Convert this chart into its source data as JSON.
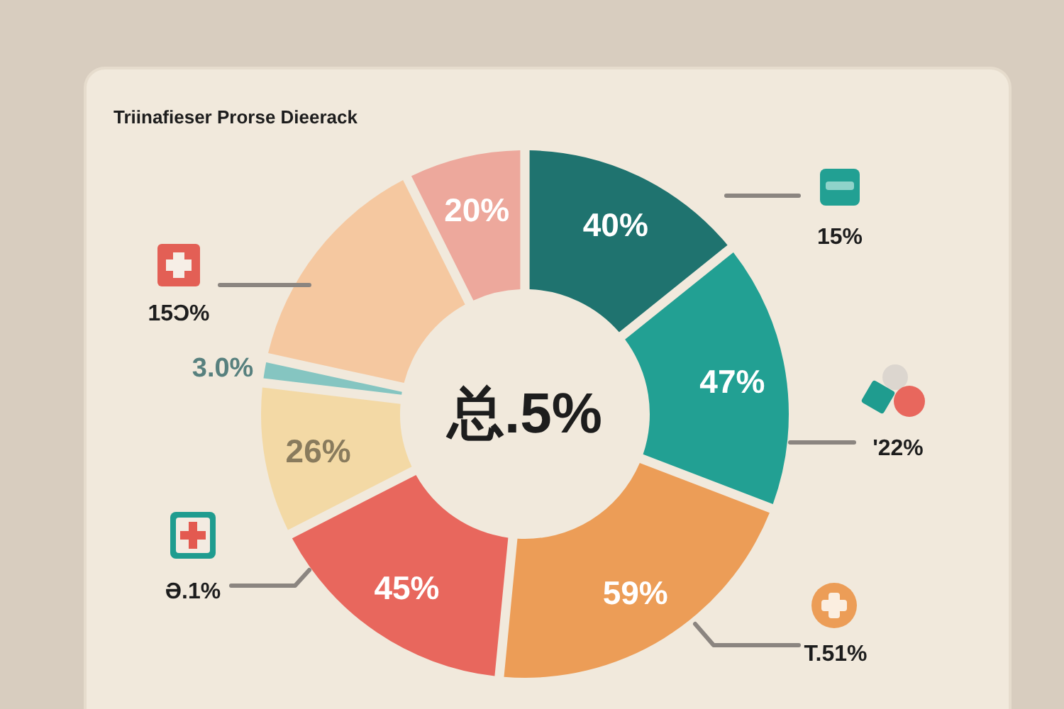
{
  "chart_data": {
    "type": "donut",
    "title": "Triinafieser Prorse Dieerack",
    "categories": [
      null,
      null,
      null,
      null,
      null,
      null,
      null,
      null
    ],
    "values": [
      40,
      47,
      59,
      45,
      26,
      3.0,
      40,
      20
    ],
    "colors": [
      "#1f736f",
      "#22a093",
      "#ec9d57",
      "#e8675d",
      "#f3d9a5",
      "#85c5c1",
      "#f5c8a0",
      "#eda89c"
    ],
    "value_labels": [
      "40%",
      "47%",
      "59%",
      "45%",
      "26%",
      "3.0%",
      null,
      "20%"
    ],
    "annotations": [
      "总.5%",
      "15%",
      "'22%",
      "T.51%",
      "Ә.1%",
      "15Ͻ%"
    ]
  }
}
